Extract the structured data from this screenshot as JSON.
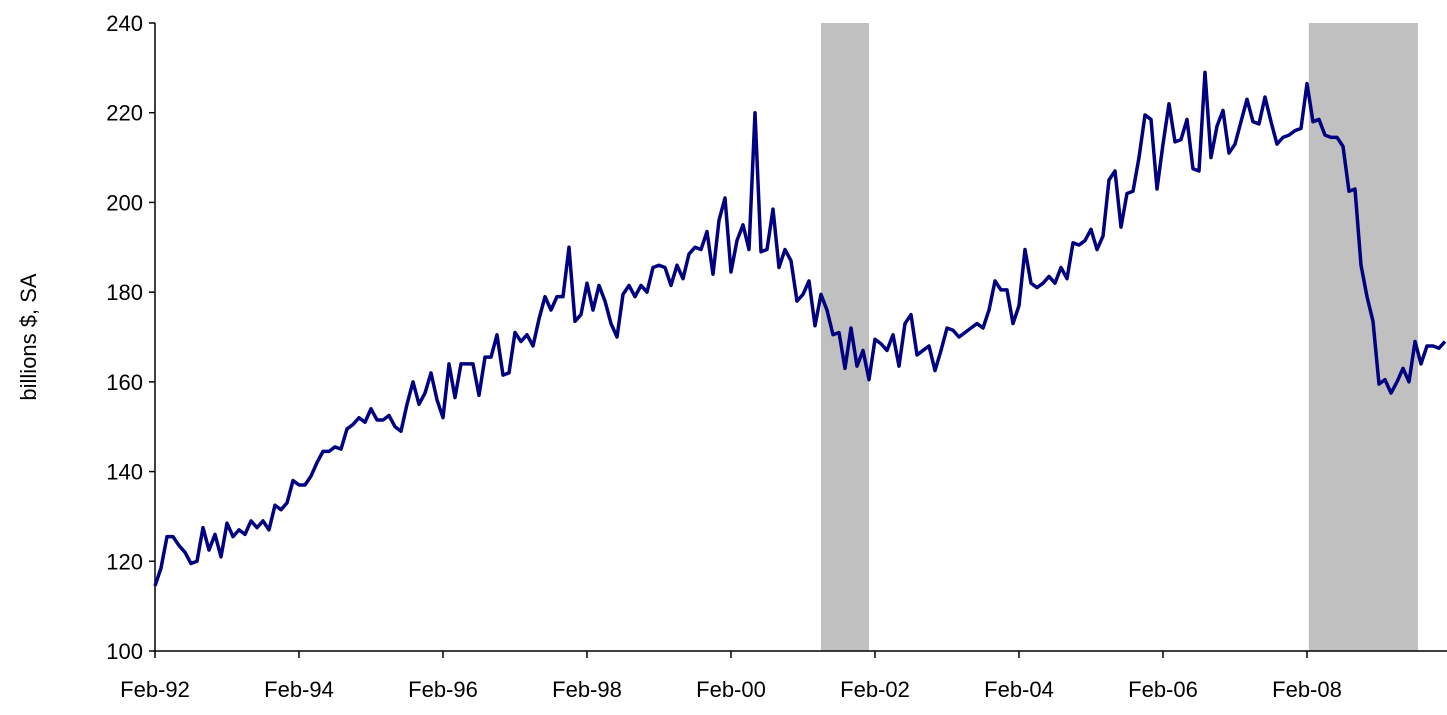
{
  "chart_data": {
    "type": "line",
    "ylabel": "billions $, SA",
    "categories": [
      "Feb-92",
      null,
      null,
      null,
      null,
      null,
      null,
      null,
      null,
      null,
      null,
      null,
      null,
      null,
      null,
      null,
      null,
      null,
      null,
      null,
      null,
      null,
      null,
      null,
      "Feb-94",
      null,
      null,
      null,
      null,
      null,
      null,
      null,
      null,
      null,
      null,
      null,
      null,
      null,
      null,
      null,
      null,
      null,
      null,
      null,
      null,
      null,
      null,
      null,
      "Feb-96",
      null,
      null,
      null,
      null,
      null,
      null,
      null,
      null,
      null,
      null,
      null,
      null,
      null,
      null,
      null,
      null,
      null,
      null,
      null,
      null,
      null,
      null,
      null,
      "Feb-98",
      null,
      null,
      null,
      null,
      null,
      null,
      null,
      null,
      null,
      null,
      null,
      null,
      null,
      null,
      null,
      null,
      null,
      null,
      null,
      null,
      null,
      null,
      null,
      "Feb-00",
      null,
      null,
      null,
      null,
      null,
      null,
      null,
      null,
      null,
      null,
      null,
      null,
      null,
      null,
      null,
      null,
      null,
      null,
      null,
      null,
      null,
      null,
      null,
      "Feb-02",
      null,
      null,
      null,
      null,
      null,
      null,
      null,
      null,
      null,
      null,
      null,
      null,
      null,
      null,
      null,
      null,
      null,
      null,
      null,
      null,
      null,
      null,
      null,
      "Feb-04",
      null,
      null,
      null,
      null,
      null,
      null,
      null,
      null,
      null,
      null,
      null,
      null,
      null,
      null,
      null,
      null,
      null,
      null,
      null,
      null,
      null,
      null,
      null,
      "Feb-06",
      null,
      null,
      null,
      null,
      null,
      null,
      null,
      null,
      null,
      null,
      null,
      null,
      null,
      null,
      null,
      null,
      null,
      null,
      null,
      null,
      null,
      null,
      null,
      "Feb-08",
      null,
      null,
      null,
      null,
      null,
      null,
      null,
      null,
      null,
      null,
      null,
      null,
      null,
      null,
      null,
      null,
      null,
      null,
      null,
      null,
      null,
      null,
      null
    ],
    "series": [
      {
        "color": "#000080",
        "values": [
          114.5,
          118.5,
          125.5,
          125.5,
          123.5,
          122,
          119.5,
          120,
          127.5,
          122.5,
          126,
          121,
          128.5,
          125.5,
          127,
          126,
          129,
          127.5,
          129,
          127,
          132.5,
          131.5,
          133,
          138,
          137,
          137,
          139,
          142,
          144.5,
          144.5,
          145.5,
          145,
          149.5,
          150.5,
          152,
          151,
          154,
          151.5,
          151.5,
          152.5,
          150,
          149,
          155,
          160,
          155,
          157.5,
          162,
          156,
          152,
          164,
          156.5,
          164,
          164,
          164,
          157,
          165.5,
          165.5,
          170.5,
          161.5,
          162,
          171,
          169,
          170.5,
          168,
          174,
          179,
          176,
          179,
          179,
          190,
          173.5,
          175,
          182,
          176,
          181.5,
          178,
          173,
          170,
          179.5,
          181.5,
          179,
          181.5,
          180,
          185.5,
          186,
          185.5,
          181.5,
          186,
          183,
          188.5,
          190,
          189.5,
          193.5,
          184,
          196,
          201,
          184.5,
          191.5,
          195,
          189.5,
          220,
          189,
          189.5,
          198.5,
          185.5,
          189.5,
          187,
          178,
          179.5,
          182.5,
          172.5,
          179.5,
          176,
          170.5,
          171,
          163,
          172,
          163.5,
          167,
          160.5,
          169.5,
          168.5,
          167,
          170.5,
          163.5,
          173,
          175,
          166,
          167,
          168,
          162.5,
          167,
          172,
          171.5,
          170,
          171,
          172,
          173,
          172,
          176,
          182.5,
          180.5,
          180.5,
          173,
          177,
          189.5,
          182,
          181,
          182,
          183.5,
          182,
          185.5,
          183,
          191,
          190.5,
          191.5,
          194,
          189.5,
          192.5,
          205,
          207,
          194.5,
          202,
          202.5,
          210,
          219.5,
          218.5,
          203,
          213,
          222,
          213.5,
          214,
          218.5,
          207.5,
          207,
          229,
          210,
          217,
          220.5,
          211,
          213,
          218,
          223,
          218,
          217.5,
          223.5,
          218,
          213,
          214.5,
          215,
          216,
          216.5,
          226.5,
          218,
          218.5,
          215,
          214.5,
          214.5,
          212.5,
          202.5,
          203,
          186,
          179,
          173.5,
          159.5,
          160.5,
          157.5,
          160,
          163,
          160,
          169,
          164,
          168,
          168,
          167.5,
          169
        ]
      }
    ],
    "shaded_periods": [
      [
        111,
        119
      ],
      [
        192.3,
        210.5
      ]
    ],
    "shade_color": "#c0c0c0",
    "ylim": [
      100,
      240
    ],
    "yticks": [
      100,
      120,
      140,
      160,
      180,
      200,
      220,
      240
    ]
  }
}
